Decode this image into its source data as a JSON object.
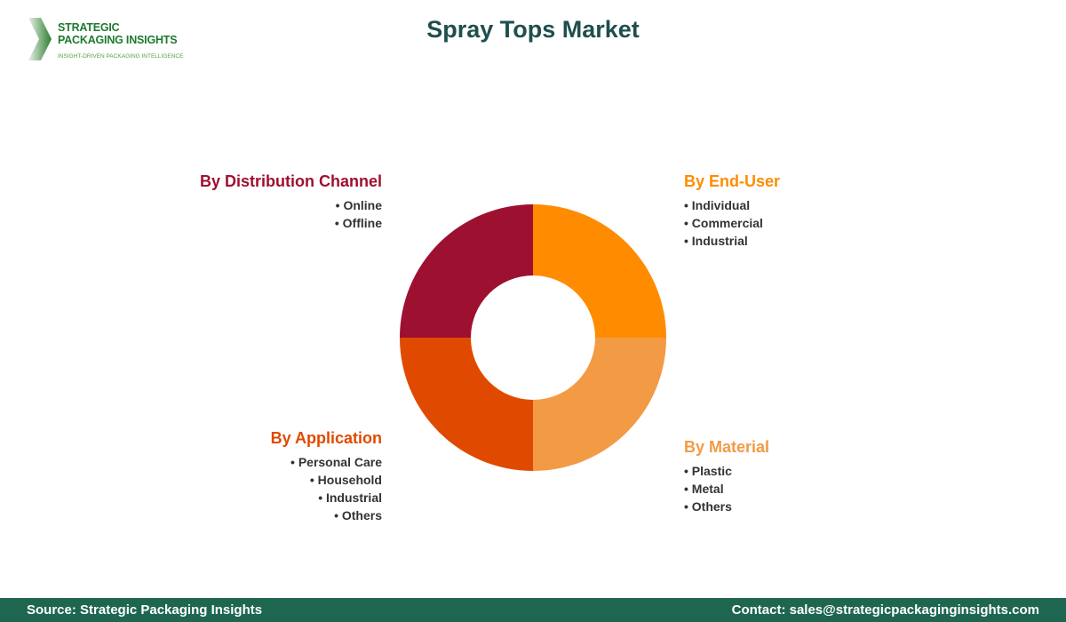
{
  "title": "Spray Tops Market",
  "logo": {
    "line1": "STRATEGIC",
    "line2": "PACKAGING INSIGHTS",
    "tagline": "INSIGHT-DRIVEN PACKAGING INTELLIGENCE"
  },
  "segments": [
    {
      "title": "By End-User",
      "color": "#FF8C00",
      "items": [
        "Individual",
        "Commercial",
        "Industrial"
      ]
    },
    {
      "title": "By Material",
      "color": "#F39A45",
      "items": [
        "Plastic",
        "Metal",
        "Others"
      ]
    },
    {
      "title": "By Application",
      "color": "#E04A00",
      "items": [
        "Personal Care",
        "Household",
        "Industrial",
        "Others"
      ]
    },
    {
      "title": "By Distribution Channel",
      "color": "#9E1030",
      "items": [
        "Online",
        "Offline"
      ]
    }
  ],
  "footer": {
    "source": "Source: Strategic Packaging Insights",
    "contact": "Contact: sales@strategicpackaginginsights.com"
  }
}
